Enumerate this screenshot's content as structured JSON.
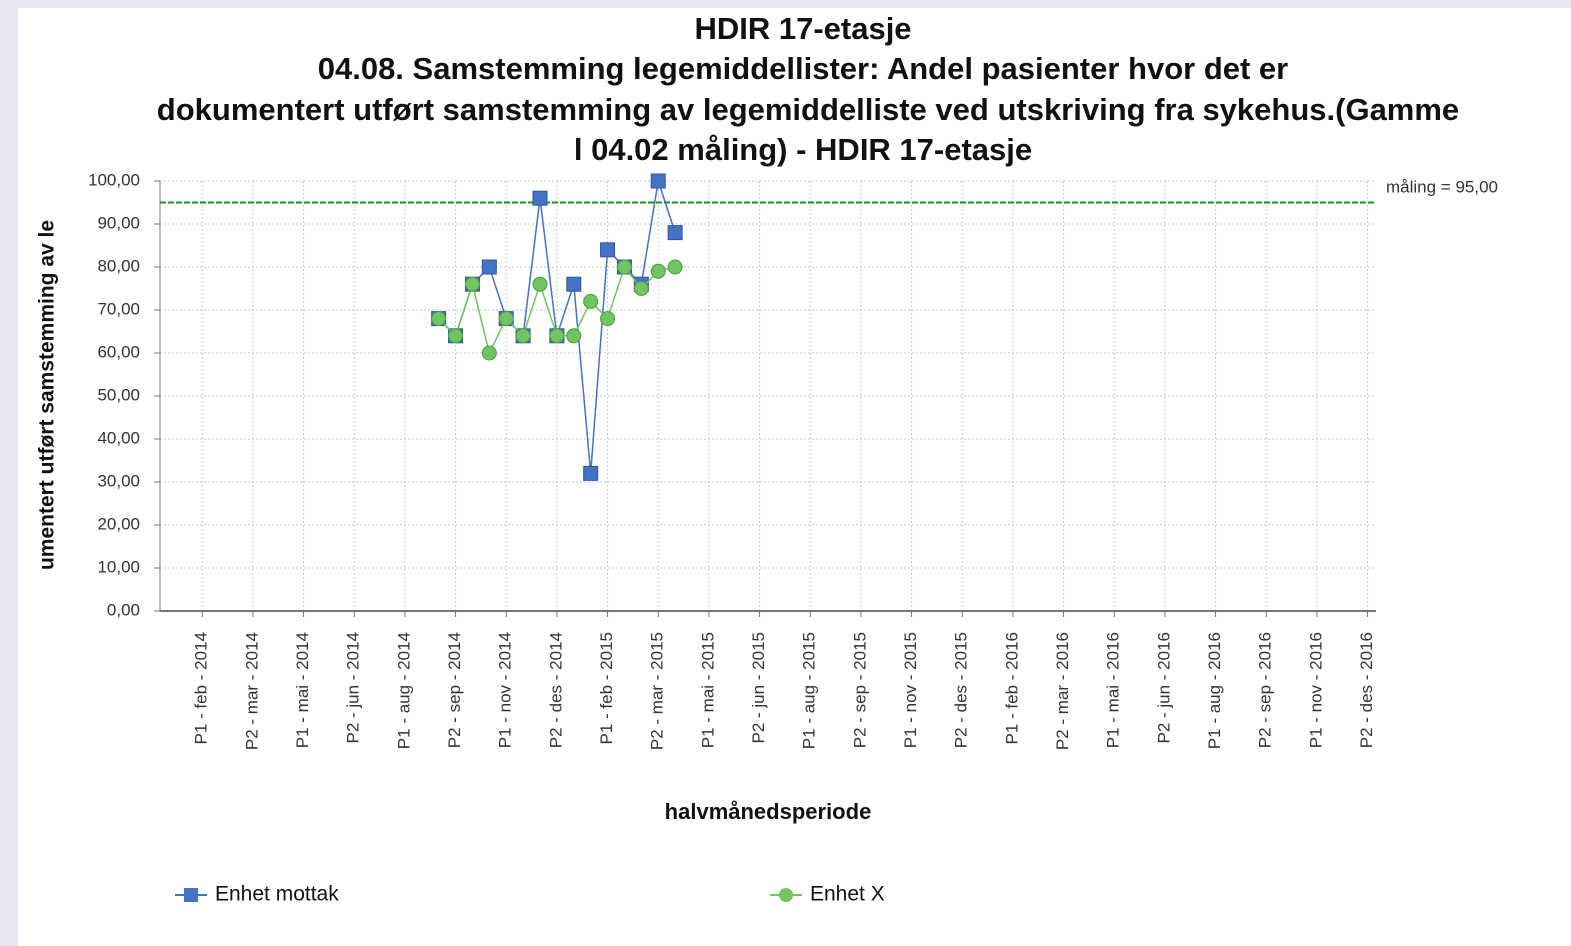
{
  "chart_data": {
    "type": "line",
    "title": "HDIR 17-etasje",
    "subtitle_lines": [
      "04.08. Samstemming legemiddellister: Andel pasienter hvor det er",
      "dokumentert utført samstemming av legemiddelliste ved utskriving fra sykehus.(Gamme",
      "l 04.02 måling) - HDIR 17-etasje"
    ],
    "x_label": "halvmånedsperiode",
    "y_label": "umentert utført samstemming av le",
    "categories": [
      null,
      null,
      "P1 - feb - 2014",
      null,
      null,
      "P2 - mar - 2014",
      null,
      null,
      "P1 - mai - 2014",
      null,
      null,
      "P2 - jun - 2014",
      null,
      null,
      "P1 - aug - 2014",
      null,
      null,
      "P2 - sep - 2014",
      null,
      null,
      "P1 - nov - 2014",
      null,
      null,
      "P2 - des - 2014",
      null,
      null,
      "P1 - feb - 2015",
      null,
      null,
      "P2 - mar - 2015",
      null,
      null,
      "P1 - mai - 2015",
      null,
      null,
      "P2 - jun - 2015",
      null,
      null,
      "P1 - aug - 2015",
      null,
      null,
      "P2 - sep - 2015",
      null,
      null,
      "P1 - nov - 2015",
      null,
      null,
      "P2 - des - 2015",
      null,
      null,
      "P1 - feb - 2016",
      null,
      null,
      "P2 - mar - 2016",
      null,
      null,
      "P1 - mai - 2016",
      null,
      null,
      "P2 - jun - 2016",
      null,
      null,
      "P1 - aug - 2016",
      null,
      null,
      "P2 - sep - 2016",
      null,
      null,
      "P1 - nov - 2016",
      null,
      null,
      "P2 - des - 2016"
    ],
    "series": [
      {
        "name": "Enhet mottak",
        "color": "#4472c4",
        "marker": "square",
        "values": [
          null,
          null,
          null,
          null,
          null,
          null,
          null,
          null,
          null,
          null,
          null,
          null,
          null,
          null,
          null,
          null,
          68,
          64,
          76,
          80,
          68,
          64,
          96,
          64,
          76,
          32,
          84,
          80,
          76,
          100,
          88,
          null,
          null,
          null,
          null,
          null,
          null,
          null,
          null,
          null,
          null,
          null,
          null,
          null,
          null,
          null,
          null,
          null,
          null,
          null,
          null,
          null,
          null,
          null,
          null,
          null,
          null,
          null,
          null,
          null,
          null,
          null,
          null,
          null,
          null,
          null,
          null,
          null,
          null,
          null,
          null,
          null
        ]
      },
      {
        "name": "Enhet X",
        "color": "#70c462",
        "marker": "circle",
        "values": [
          null,
          null,
          null,
          null,
          null,
          null,
          null,
          null,
          null,
          null,
          null,
          null,
          null,
          null,
          null,
          null,
          68,
          64,
          76,
          60,
          68,
          64,
          76,
          64,
          64,
          72,
          68,
          80,
          75,
          79,
          80,
          null,
          null,
          null,
          null,
          null,
          null,
          null,
          null,
          null,
          null,
          null,
          null,
          null,
          null,
          null,
          null,
          null,
          null,
          null,
          null,
          null,
          null,
          null,
          null,
          null,
          null,
          null,
          null,
          null,
          null,
          null,
          null,
          null,
          null,
          null,
          null,
          null,
          null,
          null,
          null,
          null
        ]
      }
    ],
    "reference_line": {
      "value": 95,
      "label": "måling = 95,00",
      "color": "#1f8f1f"
    },
    "ylim": [
      0,
      100
    ],
    "yticks": [
      {
        "value": 0,
        "label": "0,00"
      },
      {
        "value": 10,
        "label": "10,00"
      },
      {
        "value": 20,
        "label": "20,00"
      },
      {
        "value": 30,
        "label": "30,00"
      },
      {
        "value": 40,
        "label": "40,00"
      },
      {
        "value": 50,
        "label": "50,00"
      },
      {
        "value": 60,
        "label": "60,00"
      },
      {
        "value": 70,
        "label": "70,00"
      },
      {
        "value": 80,
        "label": "80,00"
      },
      {
        "value": 90,
        "label": "90,00"
      },
      {
        "value": 100,
        "label": "100,00"
      }
    ],
    "grid": true,
    "legend": "bottom"
  }
}
